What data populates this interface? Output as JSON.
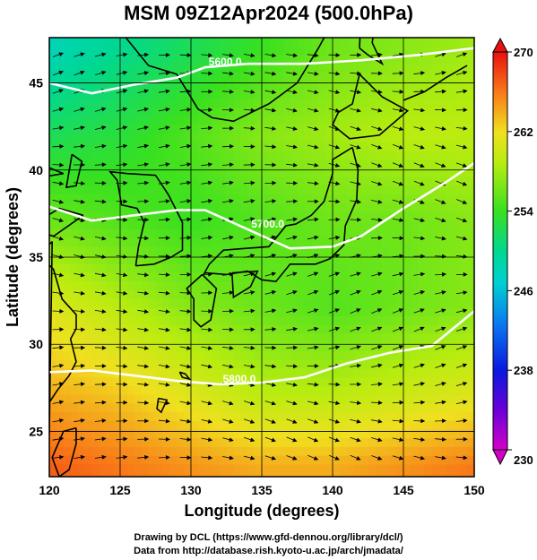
{
  "title": "MSM 09Z12Apr2024 (500.0hPa)",
  "xlabel": "Longitude (degrees)",
  "ylabel": "Latitude  (degrees)",
  "footer": {
    "line1": "Drawing by DCL (https://www.gfd-dennou.org/library/dcl/)",
    "line2": "Data from http://database.rish.kyoto-u.ac.jp/arch/jmadata/"
  },
  "chart_data": {
    "type": "heatmap",
    "title": "MSM 09Z12Apr2024 (500.0hPa)",
    "xlabel": "Longitude (degrees)",
    "ylabel": "Latitude  (degrees)",
    "xlim": [
      120,
      150
    ],
    "ylim": [
      22.4,
      47.6
    ],
    "xticks": [
      120,
      125,
      130,
      135,
      140,
      145,
      150
    ],
    "yticks": [
      25,
      30,
      35,
      40,
      45
    ],
    "grid": true,
    "colorbar": {
      "min": 230,
      "max": 270,
      "ticks": [
        230,
        238,
        246,
        254,
        262,
        270
      ]
    },
    "contours": [
      {
        "label": "5600.0",
        "points": [
          [
            120,
            45.0
          ],
          [
            123,
            44.4
          ],
          [
            126,
            44.9
          ],
          [
            129,
            45.3
          ],
          [
            131,
            45.9
          ],
          [
            134,
            46.1
          ],
          [
            138,
            46.1
          ],
          [
            142,
            46.3
          ],
          [
            146,
            46.6
          ],
          [
            150,
            47.0
          ]
        ]
      },
      {
        "label": "5700.0",
        "points": [
          [
            120,
            37.9
          ],
          [
            123,
            37.1
          ],
          [
            126,
            37.4
          ],
          [
            129,
            37.7
          ],
          [
            131,
            37.7
          ],
          [
            134,
            36.6
          ],
          [
            137,
            35.5
          ],
          [
            140,
            35.6
          ],
          [
            142,
            36.2
          ],
          [
            145,
            37.8
          ],
          [
            148,
            39.3
          ],
          [
            150,
            40.4
          ]
        ]
      },
      {
        "label": "5800.0",
        "points": [
          [
            120,
            28.4
          ],
          [
            123,
            28.5
          ],
          [
            126,
            28.2
          ],
          [
            129,
            27.9
          ],
          [
            132,
            27.7
          ],
          [
            135,
            27.8
          ],
          [
            138,
            28.1
          ],
          [
            141,
            28.9
          ],
          [
            144,
            29.5
          ],
          [
            147,
            29.9
          ],
          [
            150,
            31.9
          ]
        ]
      }
    ],
    "field_samples": [
      {
        "lat": 47,
        "values": [
          248,
          250,
          252,
          254,
          256,
          257,
          258
        ]
      },
      {
        "lat": 42,
        "values": [
          252,
          253,
          255,
          257,
          258,
          259,
          259
        ]
      },
      {
        "lat": 37,
        "values": [
          256,
          255,
          254,
          255,
          256,
          256,
          257
        ]
      },
      {
        "lat": 32,
        "values": [
          261,
          259,
          257,
          256,
          255,
          256,
          257
        ]
      },
      {
        "lat": 27,
        "values": [
          264,
          263,
          261,
          259,
          259,
          260,
          261
        ]
      },
      {
        "lat": 23,
        "values": [
          267,
          266,
          265,
          264,
          264,
          265,
          266
        ]
      }
    ]
  }
}
